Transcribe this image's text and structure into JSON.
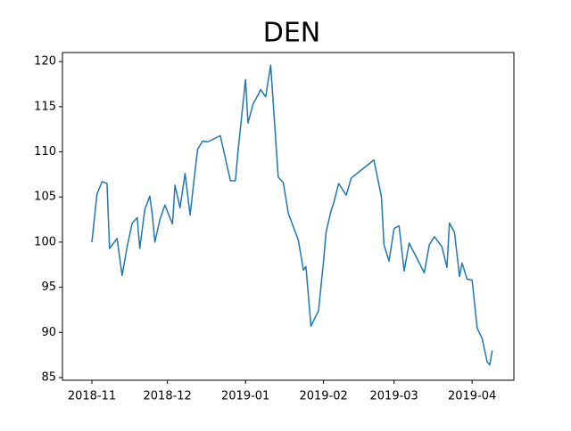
{
  "chart_data": {
    "type": "line",
    "title": "DEN",
    "x": [
      0,
      2,
      4,
      6,
      7,
      10,
      12,
      14,
      16,
      18,
      19,
      21,
      23,
      24,
      25,
      27,
      29,
      32,
      33,
      35,
      37,
      39,
      41,
      42,
      44,
      46,
      51,
      55,
      57,
      58,
      61,
      62,
      64,
      66,
      67,
      69,
      71,
      74,
      76,
      78,
      82,
      84,
      85,
      87,
      90,
      92,
      93,
      95,
      96,
      98,
      101,
      103,
      112,
      115,
      116,
      118,
      120,
      122,
      124,
      126,
      132,
      134,
      136,
      139,
      141,
      142,
      144,
      146,
      147,
      149,
      151,
      153,
      155,
      157,
      158,
      159
    ],
    "series": [
      {
        "name": "DEN",
        "color": "#1f77b4",
        "values": [
          100.0,
          105.3,
          106.7,
          106.5,
          99.3,
          100.4,
          96.3,
          99.5,
          102.1,
          102.7,
          99.3,
          103.6,
          105.1,
          103.0,
          100.0,
          102.5,
          104.1,
          102.0,
          106.3,
          103.8,
          107.6,
          103.0,
          108.0,
          110.3,
          111.2,
          111.1,
          111.8,
          106.8,
          106.8,
          110.0,
          118.0,
          113.2,
          115.3,
          116.3,
          116.9,
          116.1,
          119.6,
          107.2,
          106.6,
          103.2,
          100.2,
          96.9,
          97.3,
          90.7,
          92.4,
          97.9,
          101.1,
          103.5,
          104.3,
          106.5,
          105.2,
          107.1,
          109.1,
          105.0,
          99.7,
          97.9,
          101.5,
          101.8,
          96.8,
          99.9,
          96.6,
          99.7,
          100.6,
          99.5,
          97.2,
          102.1,
          101.1,
          96.2,
          97.7,
          95.9,
          95.8,
          90.5,
          89.3,
          86.7,
          86.4,
          88.0
        ]
      }
    ],
    "xlim": [
      -11.7,
      167.6
    ],
    "xticks": [
      {
        "value": 0,
        "label": "2018-11"
      },
      {
        "value": 30,
        "label": "2018-12"
      },
      {
        "value": 61,
        "label": "2019-01"
      },
      {
        "value": 92,
        "label": "2019-02"
      },
      {
        "value": 120,
        "label": "2019-03"
      },
      {
        "value": 151,
        "label": "2019-04"
      }
    ],
    "ylim": [
      84.7,
      121.0
    ],
    "yticks": [
      85,
      90,
      95,
      100,
      105,
      110,
      115,
      120
    ],
    "grid": false
  }
}
